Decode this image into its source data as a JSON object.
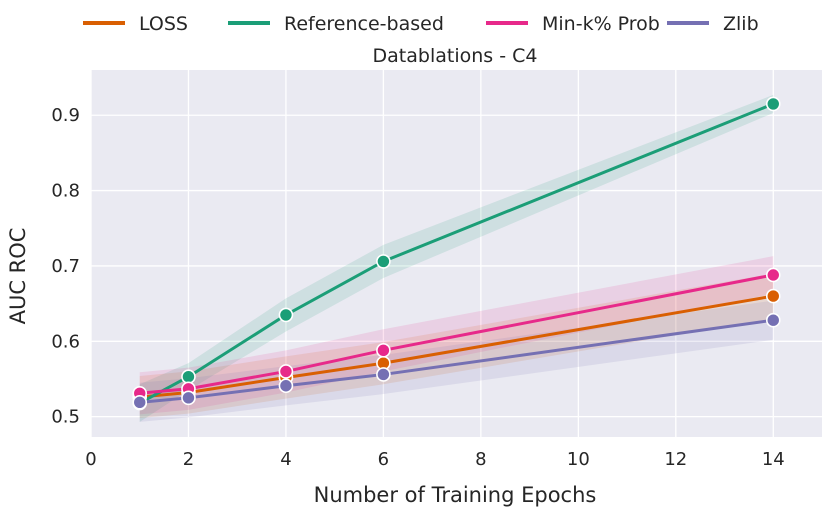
{
  "chart_data": {
    "type": "line",
    "title": "Datablations - C4",
    "xlabel": "Number of Training Epochs",
    "ylabel": "AUC ROC",
    "xlim": [
      0,
      15
    ],
    "ylim": [
      0.473,
      0.96
    ],
    "xticks": [
      0,
      2,
      4,
      6,
      8,
      10,
      12,
      14
    ],
    "yticks": [
      0.5,
      0.6,
      0.7,
      0.8,
      0.9
    ],
    "ytick_labels": [
      "0.5",
      "0.6",
      "0.7",
      "0.8",
      "0.9"
    ],
    "grid": true,
    "legend_position": "top",
    "x": [
      1,
      2,
      4,
      6,
      14
    ],
    "series": [
      {
        "name": "LOSS",
        "color": "#d95f02",
        "values": [
          0.526,
          0.532,
          0.552,
          0.571,
          0.66
        ],
        "band": [
          0.028,
          0.028,
          0.028,
          0.028,
          0.03
        ]
      },
      {
        "name": "Reference-based",
        "color": "#1b9e77",
        "values": [
          0.518,
          0.553,
          0.635,
          0.706,
          0.915
        ],
        "band": [
          0.025,
          0.018,
          0.022,
          0.022,
          0.012
        ]
      },
      {
        "name": "Min-k% Prob",
        "color": "#e7298a",
        "values": [
          0.531,
          0.537,
          0.56,
          0.588,
          0.688
        ],
        "band": [
          0.028,
          0.028,
          0.028,
          0.028,
          0.025
        ]
      },
      {
        "name": "Zlib",
        "color": "#7570b3",
        "values": [
          0.519,
          0.525,
          0.541,
          0.556,
          0.628
        ],
        "band": [
          0.026,
          0.026,
          0.026,
          0.026,
          0.026
        ]
      }
    ]
  }
}
